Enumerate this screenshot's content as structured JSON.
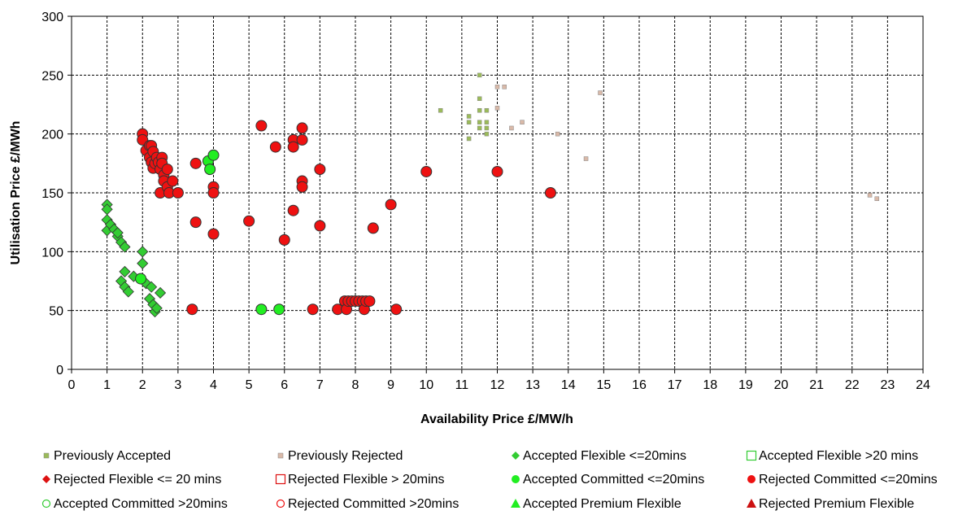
{
  "chart_data": {
    "type": "scatter",
    "title": "",
    "xlabel": "Availability Price £/MW/h",
    "ylabel": "Utilisation Price £/MWh",
    "xlim": [
      0,
      24
    ],
    "ylim": [
      0,
      300
    ],
    "x_ticks": [
      "0",
      "1",
      "2",
      "3",
      "4",
      "5",
      "6",
      "7",
      "8",
      "9",
      "10",
      "11",
      "12",
      "13",
      "14",
      "15",
      "16",
      "17",
      "18",
      "19",
      "20",
      "21",
      "22",
      "23",
      "24"
    ],
    "y_ticks": [
      "0",
      "50",
      "100",
      "150",
      "200",
      "250",
      "300"
    ],
    "grid": true,
    "legend_position": "bottom",
    "series": [
      {
        "name": "Previously Accepted",
        "marker": "small-square",
        "color": "#9bbb59",
        "points": [
          [
            10.4,
            220
          ],
          [
            11.2,
            215
          ],
          [
            11.2,
            210
          ],
          [
            11.2,
            196
          ],
          [
            11.5,
            250
          ],
          [
            11.5,
            230
          ],
          [
            11.5,
            220
          ],
          [
            11.5,
            210
          ],
          [
            11.5,
            205
          ],
          [
            11.7,
            220
          ],
          [
            11.7,
            210
          ],
          [
            11.7,
            205
          ],
          [
            11.7,
            200
          ]
        ]
      },
      {
        "name": "Previously Rejected",
        "marker": "small-square",
        "color": "#d9b9a8",
        "points": [
          [
            12.0,
            240
          ],
          [
            12.0,
            222
          ],
          [
            12.2,
            240
          ],
          [
            12.4,
            205
          ],
          [
            12.7,
            210
          ],
          [
            13.7,
            200
          ],
          [
            14.5,
            179
          ],
          [
            14.9,
            235
          ],
          [
            22.5,
            148
          ],
          [
            22.7,
            145
          ]
        ]
      },
      {
        "name": "Accepted Flexible <=20mins",
        "marker": "diamond",
        "color": "#33cc33",
        "points": [
          [
            1.0,
            140
          ],
          [
            1.0,
            136
          ],
          [
            1.0,
            127
          ],
          [
            1.0,
            118
          ],
          [
            1.1,
            123
          ],
          [
            1.2,
            119
          ],
          [
            1.3,
            113
          ],
          [
            1.3,
            116
          ],
          [
            1.4,
            108
          ],
          [
            1.5,
            104
          ],
          [
            1.4,
            75
          ],
          [
            1.5,
            83
          ],
          [
            1.5,
            70
          ],
          [
            1.6,
            66
          ],
          [
            1.75,
            79
          ],
          [
            2.0,
            100
          ],
          [
            2.0,
            90
          ],
          [
            2.1,
            73
          ],
          [
            2.2,
            60
          ],
          [
            2.25,
            70
          ],
          [
            2.3,
            55
          ],
          [
            2.35,
            49
          ],
          [
            2.4,
            52
          ],
          [
            2.5,
            65
          ]
        ]
      },
      {
        "name": "Accepted Flexible >20 mins",
        "marker": "square-open",
        "color": "#33cc33",
        "points": []
      },
      {
        "name": "Rejected Flexible <= 20 mins",
        "marker": "diamond",
        "color": "#dd1111",
        "points": []
      },
      {
        "name": "Rejected Flexible > 20mins",
        "marker": "square-open",
        "color": "#dd1111",
        "points": []
      },
      {
        "name": "Accepted Committed <=20mins",
        "marker": "circle",
        "color": "#22ee22",
        "points": [
          [
            1.95,
            77
          ],
          [
            3.85,
            177
          ],
          [
            3.9,
            170
          ],
          [
            4.0,
            182
          ],
          [
            5.35,
            51
          ],
          [
            5.85,
            51
          ]
        ]
      },
      {
        "name": "Rejected Committed <=20mins",
        "marker": "circle",
        "color": "#ee1111",
        "points": [
          [
            2.0,
            200
          ],
          [
            2.0,
            195
          ],
          [
            2.1,
            186
          ],
          [
            2.2,
            190
          ],
          [
            2.2,
            180
          ],
          [
            2.25,
            176
          ],
          [
            2.25,
            190
          ],
          [
            2.3,
            171
          ],
          [
            2.3,
            185
          ],
          [
            2.35,
            175
          ],
          [
            2.4,
            180
          ],
          [
            2.45,
            176
          ],
          [
            2.5,
            170
          ],
          [
            2.5,
            150
          ],
          [
            2.55,
            180
          ],
          [
            2.55,
            175
          ],
          [
            2.6,
            165
          ],
          [
            2.6,
            160
          ],
          [
            2.7,
            170
          ],
          [
            2.7,
            155
          ],
          [
            2.75,
            150
          ],
          [
            2.85,
            160
          ],
          [
            3.0,
            150
          ],
          [
            3.4,
            51
          ],
          [
            3.5,
            175
          ],
          [
            3.5,
            125
          ],
          [
            4.0,
            155
          ],
          [
            4.0,
            150
          ],
          [
            4.0,
            115
          ],
          [
            5.0,
            126
          ],
          [
            5.35,
            207
          ],
          [
            5.75,
            189
          ],
          [
            6.0,
            110
          ],
          [
            6.25,
            195
          ],
          [
            6.25,
            189
          ],
          [
            6.25,
            135
          ],
          [
            6.5,
            205
          ],
          [
            6.5,
            195
          ],
          [
            6.5,
            160
          ],
          [
            6.5,
            155
          ],
          [
            6.8,
            51
          ],
          [
            7.0,
            170
          ],
          [
            7.0,
            122
          ],
          [
            7.5,
            51
          ],
          [
            7.7,
            58
          ],
          [
            7.75,
            51
          ],
          [
            7.8,
            58
          ],
          [
            7.9,
            58
          ],
          [
            8.0,
            58
          ],
          [
            8.1,
            58
          ],
          [
            8.2,
            58
          ],
          [
            8.25,
            51
          ],
          [
            8.3,
            58
          ],
          [
            8.4,
            58
          ],
          [
            8.5,
            120
          ],
          [
            9.0,
            140
          ],
          [
            9.15,
            51
          ],
          [
            10.0,
            168
          ],
          [
            12.0,
            168
          ],
          [
            13.5,
            150
          ]
        ]
      },
      {
        "name": "Accepted Committed >20mins",
        "marker": "circle-open",
        "color": "#33cc33",
        "points": []
      },
      {
        "name": "Rejected Committed >20mins",
        "marker": "circle-open",
        "color": "#ee1111",
        "points": []
      },
      {
        "name": "Accepted Premium Flexible",
        "marker": "triangle",
        "color": "#22ee22",
        "points": []
      },
      {
        "name": "Rejected Premium Flexible",
        "marker": "triangle",
        "color": "#cc1111",
        "points": []
      }
    ]
  }
}
